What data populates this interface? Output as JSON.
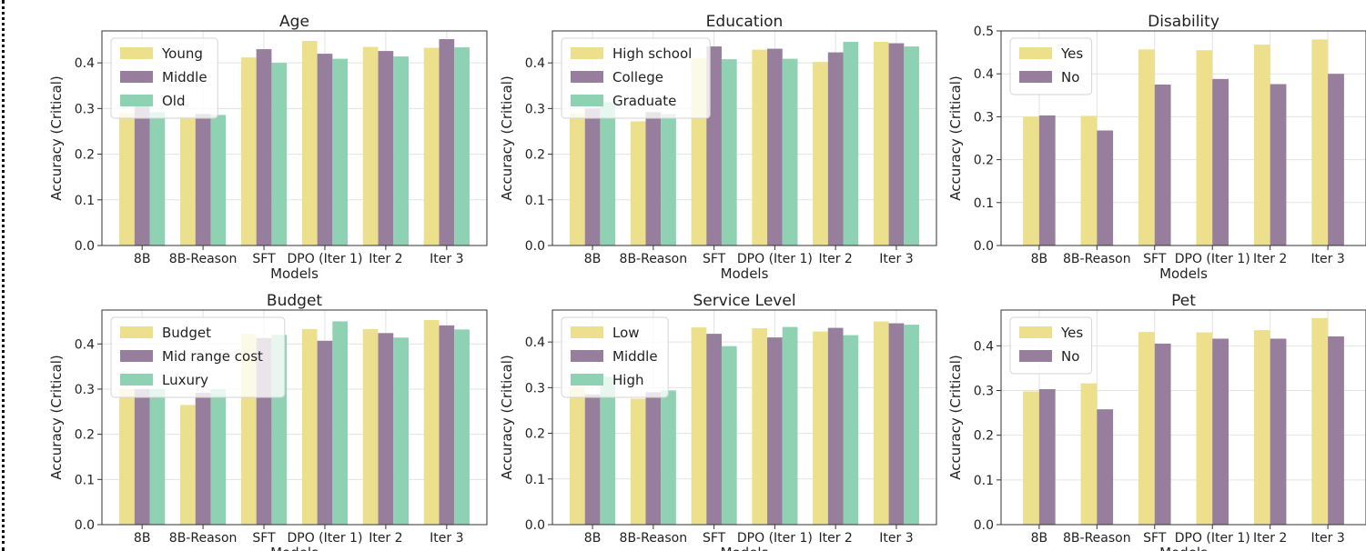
{
  "colors": {
    "yellow": "#ece08c",
    "purple": "#987e9d",
    "green": "#8ed2b3"
  },
  "chart_data": [
    {
      "type": "bar",
      "title": "Age",
      "xlabel": "Models",
      "ylabel": "Accuracy (Critical)",
      "categories": [
        "8B",
        "8B-Reason",
        "SFT",
        "DPO (Iter 1)",
        "Iter 2",
        "Iter 3"
      ],
      "ylim": [
        0,
        0.47
      ],
      "yticks": [
        "0.0",
        "0.1",
        "0.2",
        "0.3",
        "0.4"
      ],
      "grid": true,
      "legend": "top-left",
      "series": [
        {
          "name": "Young",
          "values": [
            0.29,
            0.283,
            0.412,
            0.448,
            0.435,
            0.433
          ]
        },
        {
          "name": "Middle",
          "values": [
            0.307,
            0.288,
            0.43,
            0.42,
            0.426,
            0.452
          ]
        },
        {
          "name": "Old",
          "values": [
            0.292,
            0.286,
            0.4,
            0.409,
            0.414,
            0.434
          ]
        }
      ]
    },
    {
      "type": "bar",
      "title": "Education",
      "xlabel": "Models",
      "ylabel": "Accuracy (Critical)",
      "categories": [
        "8B",
        "8B-Reason",
        "SFT",
        "DPO (Iter 1)",
        "Iter 2",
        "Iter 3"
      ],
      "ylim": [
        0,
        0.47
      ],
      "yticks": [
        "0.0",
        "0.1",
        "0.2",
        "0.3",
        "0.4"
      ],
      "grid": true,
      "legend": "top-left",
      "series": [
        {
          "name": "High school",
          "values": [
            0.29,
            0.272,
            0.41,
            0.429,
            0.402,
            0.446
          ]
        },
        {
          "name": "College",
          "values": [
            0.3,
            0.292,
            0.436,
            0.431,
            0.423,
            0.443
          ]
        },
        {
          "name": "Graduate",
          "values": [
            0.314,
            0.288,
            0.408,
            0.409,
            0.446,
            0.436
          ]
        }
      ]
    },
    {
      "type": "bar",
      "title": "Disability",
      "xlabel": "Models",
      "ylabel": "Accuracy (Critical)",
      "categories": [
        "8B",
        "8B-Reason",
        "SFT",
        "DPO (Iter 1)",
        "Iter 2",
        "Iter 3"
      ],
      "ylim": [
        0,
        0.5
      ],
      "yticks": [
        "0.0",
        "0.1",
        "0.2",
        "0.3",
        "0.4",
        "0.5"
      ],
      "grid": true,
      "legend": "top-left",
      "series": [
        {
          "name": "Yes",
          "values": [
            0.3,
            0.302,
            0.457,
            0.455,
            0.468,
            0.48
          ]
        },
        {
          "name": "No",
          "values": [
            0.303,
            0.268,
            0.375,
            0.388,
            0.376,
            0.4
          ]
        }
      ]
    },
    {
      "type": "bar",
      "title": "Budget",
      "xlabel": "Models",
      "ylabel": "Accuracy (Critical)",
      "categories": [
        "8B",
        "8B-Reason",
        "SFT",
        "DPO (Iter 1)",
        "Iter 2",
        "Iter 3"
      ],
      "ylim": [
        0,
        0.475
      ],
      "yticks": [
        "0.0",
        "0.1",
        "0.2",
        "0.3",
        "0.4"
      ],
      "grid": true,
      "legend": "top-left",
      "series": [
        {
          "name": "Budget",
          "values": [
            0.3,
            0.265,
            0.422,
            0.433,
            0.433,
            0.453
          ]
        },
        {
          "name": "Mid range cost",
          "values": [
            0.3,
            0.292,
            0.413,
            0.407,
            0.424,
            0.441
          ]
        },
        {
          "name": "Luxury",
          "values": [
            0.3,
            0.3,
            0.42,
            0.45,
            0.414,
            0.432
          ]
        }
      ]
    },
    {
      "type": "bar",
      "title": "Service Level",
      "xlabel": "Models",
      "ylabel": "Accuracy (Critical)",
      "categories": [
        "8B",
        "8B-Reason",
        "SFT",
        "DPO (Iter 1)",
        "Iter 2",
        "Iter 3"
      ],
      "ylim": [
        0,
        0.47
      ],
      "yticks": [
        "0.0",
        "0.1",
        "0.2",
        "0.3",
        "0.4"
      ],
      "grid": true,
      "legend": "top-left",
      "series": [
        {
          "name": "Low",
          "values": [
            0.302,
            0.276,
            0.432,
            0.43,
            0.423,
            0.445
          ]
        },
        {
          "name": "Middle",
          "values": [
            0.285,
            0.29,
            0.418,
            0.41,
            0.431,
            0.441
          ]
        },
        {
          "name": "High",
          "values": [
            0.324,
            0.294,
            0.391,
            0.433,
            0.415,
            0.438
          ]
        }
      ]
    },
    {
      "type": "bar",
      "title": "Pet",
      "xlabel": "Models",
      "ylabel": "Accuracy (Critical)",
      "categories": [
        "8B",
        "8B-Reason",
        "SFT",
        "DPO (Iter 1)",
        "Iter 2",
        "Iter 3"
      ],
      "ylim": [
        0,
        0.48
      ],
      "yticks": [
        "0.0",
        "0.1",
        "0.2",
        "0.3",
        "0.4"
      ],
      "grid": true,
      "legend": "top-left",
      "series": [
        {
          "name": "Yes",
          "values": [
            0.298,
            0.316,
            0.431,
            0.43,
            0.435,
            0.462
          ]
        },
        {
          "name": "No",
          "values": [
            0.303,
            0.258,
            0.405,
            0.416,
            0.416,
            0.421
          ]
        }
      ]
    }
  ]
}
